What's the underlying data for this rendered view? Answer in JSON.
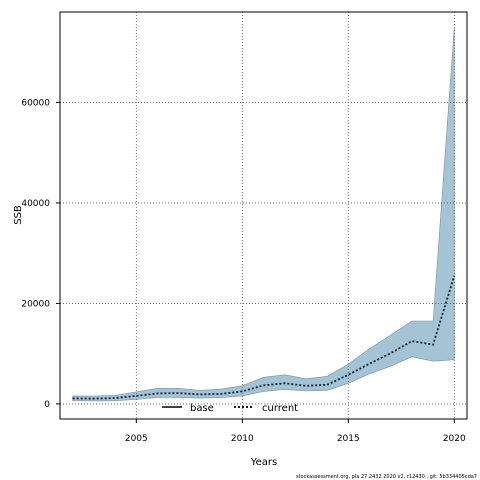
{
  "chart_data": {
    "type": "line",
    "xlabel": "Years",
    "ylabel": "SSB",
    "xlim": [
      2001.4,
      2020.6
    ],
    "ylim": [
      -3000,
      78000
    ],
    "x_ticks": [
      2005,
      2010,
      2015,
      2020
    ],
    "y_ticks": [
      0,
      20000,
      40000,
      60000
    ],
    "grid": true,
    "legend_position": "bottom-center",
    "x": [
      2002,
      2003,
      2004,
      2005,
      2006,
      2007,
      2008,
      2009,
      2010,
      2011,
      2012,
      2013,
      2014,
      2015,
      2016,
      2017,
      2018,
      2019,
      2020
    ],
    "series": [
      {
        "name": "base",
        "values": [
          null,
          null,
          null,
          null,
          null,
          null,
          null,
          null,
          null,
          null,
          null,
          null,
          null,
          null,
          null,
          null,
          null,
          null,
          null
        ]
      },
      {
        "name": "current",
        "values": [
          1100,
          1050,
          1150,
          1600,
          2100,
          2150,
          1900,
          2000,
          2500,
          3700,
          4100,
          3600,
          3800,
          5800,
          8000,
          10100,
          12500,
          11800,
          25500
        ],
        "lower": [
          650,
          600,
          650,
          900,
          1300,
          1300,
          1150,
          1250,
          1600,
          2500,
          2900,
          2600,
          2700,
          4100,
          6000,
          7500,
          9400,
          8500,
          8800
        ],
        "upper": [
          1600,
          1550,
          1700,
          2400,
          3100,
          3100,
          2700,
          2950,
          3600,
          5300,
          5800,
          5000,
          5500,
          7900,
          11000,
          13700,
          16500,
          16500,
          75000
        ]
      }
    ]
  },
  "colors": {
    "band": "#a4c4d6",
    "band_edge": "#7f8f9a",
    "current": "#0b1f33",
    "base": "#000000"
  },
  "footnote": "stockassessment.org,  pla 27.2432  2020  v2,  r12430 ,  git: 5b334405cda7"
}
